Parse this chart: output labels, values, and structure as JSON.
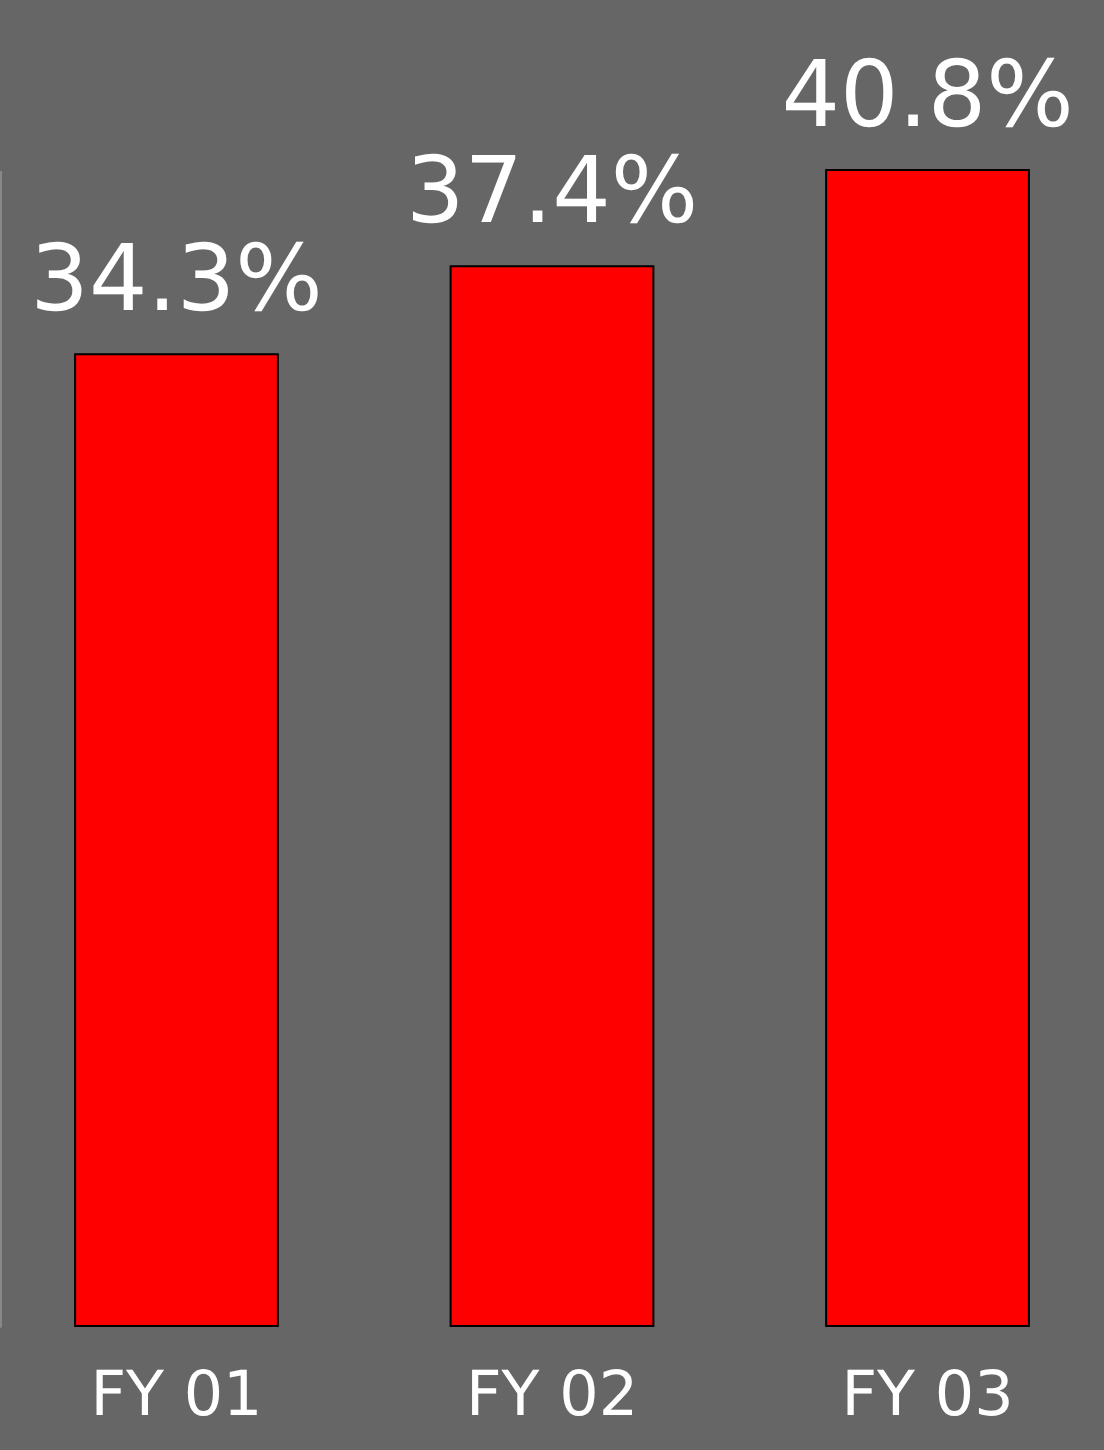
{
  "chart_data": {
    "type": "bar",
    "categories": [
      "FY 01",
      "FY 02",
      "FY 03"
    ],
    "values": [
      34.3,
      37.4,
      40.8
    ],
    "color": "#ff0000",
    "value_labels": [
      "34.3%",
      "37.4%",
      "40.8%"
    ]
  }
}
